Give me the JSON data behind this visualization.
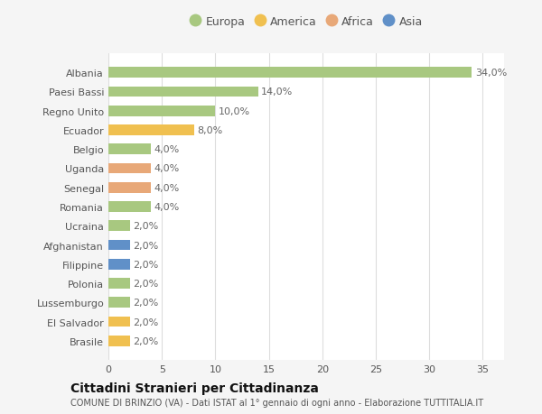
{
  "categories": [
    "Albania",
    "Paesi Bassi",
    "Regno Unito",
    "Ecuador",
    "Belgio",
    "Uganda",
    "Senegal",
    "Romania",
    "Ucraina",
    "Afghanistan",
    "Filippine",
    "Polonia",
    "Lussemburgo",
    "El Salvador",
    "Brasile"
  ],
  "values": [
    34.0,
    14.0,
    10.0,
    8.0,
    4.0,
    4.0,
    4.0,
    4.0,
    2.0,
    2.0,
    2.0,
    2.0,
    2.0,
    2.0,
    2.0
  ],
  "continents": [
    "Europa",
    "Europa",
    "Europa",
    "America",
    "Europa",
    "Africa",
    "Africa",
    "Europa",
    "Europa",
    "Asia",
    "Asia",
    "Europa",
    "Europa",
    "America",
    "America"
  ],
  "continent_colors": {
    "Europa": "#a8c880",
    "America": "#f0c050",
    "Africa": "#e8a878",
    "Asia": "#6090c8"
  },
  "legend_order": [
    "Europa",
    "America",
    "Africa",
    "Asia"
  ],
  "xlim": [
    0,
    37
  ],
  "xticks": [
    0,
    5,
    10,
    15,
    20,
    25,
    30,
    35
  ],
  "bar_height": 0.55,
  "background_color": "#f5f5f5",
  "plot_bg_color": "#ffffff",
  "title1": "Cittadini Stranieri per Cittadinanza",
  "title2": "COMUNE DI BRINZIO (VA) - Dati ISTAT al 1° gennaio di ogni anno - Elaborazione TUTTITALIA.IT",
  "label_fontsize": 8,
  "tick_fontsize": 8,
  "legend_fontsize": 9,
  "grid_color": "#dddddd"
}
